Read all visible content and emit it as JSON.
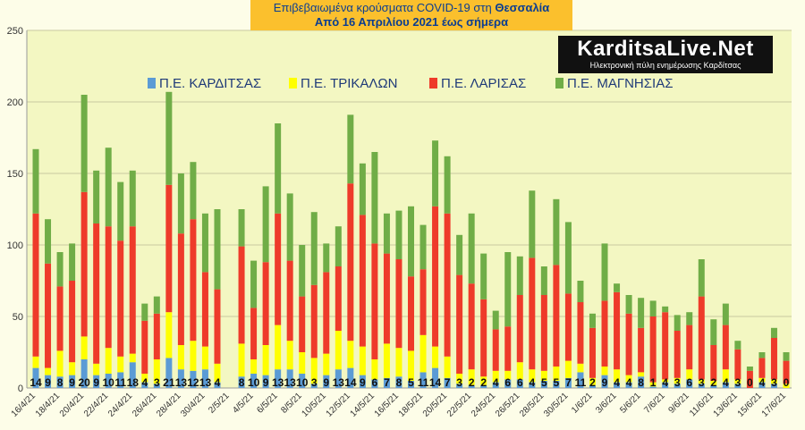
{
  "header": {
    "title_line1": "Επιβεβαιωμένα κρούσματα COVID-19 στη",
    "title_region": "Θεσσαλία",
    "title_line2": "Από 16 Απριλίου 2021 έως σήμερα"
  },
  "logo": {
    "brand": "KarditsaLive.Net",
    "tagline": "Ηλεκτρονική πύλη ενημέρωσης Καρδίτσας"
  },
  "colors": {
    "karditsa": "#5b9bd5",
    "trikala": "#ffff00",
    "larisa": "#ee3b2a",
    "magnisia": "#70ad47",
    "plot_bg": "#f3f7c2",
    "grid": "#c8c8a0"
  },
  "chart_data": {
    "type": "bar",
    "stacked": true,
    "ylim": [
      0,
      250
    ],
    "yticks": [
      0,
      50,
      100,
      150,
      200,
      250
    ],
    "grid": true,
    "legend_position": "top",
    "x_tick_labels": [
      "16/4/21",
      "18/4/21",
      "20/4/21",
      "22/4/21",
      "24/4/21",
      "26/4/21",
      "28/4/21",
      "30/4/21",
      "2/5/21",
      "4/5/21",
      "6/5/21",
      "8/5/21",
      "10/5/21",
      "12/5/21",
      "14/5/21",
      "16/5/21",
      "18/5/21",
      "20/5/21",
      "22/5/21",
      "24/5/21",
      "26/5/21",
      "28/5/21",
      "30/5/21",
      "1/6/21",
      "3/6/21",
      "5/6/21",
      "7/6/21",
      "9/6/21",
      "11/6/21",
      "13/6/21",
      "15/6/21",
      "17/6/21"
    ],
    "categories": [
      "16/4/21",
      "17/4/21",
      "18/4/21",
      "19/4/21",
      "20/4/21",
      "21/4/21",
      "22/4/21",
      "23/4/21",
      "24/4/21",
      "25/4/21",
      "26/4/21",
      "27/4/21",
      "28/4/21",
      "29/4/21",
      "30/4/21",
      "1/5/21",
      "2/5/21",
      "3/5/21",
      "4/5/21",
      "5/5/21",
      "6/5/21",
      "7/5/21",
      "8/5/21",
      "9/5/21",
      "10/5/21",
      "11/5/21",
      "12/5/21",
      "13/5/21",
      "14/5/21",
      "15/5/21",
      "16/5/21",
      "17/5/21",
      "18/5/21",
      "19/5/21",
      "20/5/21",
      "21/5/21",
      "22/5/21",
      "23/5/21",
      "24/5/21",
      "25/5/21",
      "26/5/21",
      "27/5/21",
      "28/5/21",
      "29/5/21",
      "30/5/21",
      "31/5/21",
      "1/6/21",
      "2/6/21",
      "3/6/21",
      "4/6/21",
      "5/6/21",
      "6/6/21",
      "7/6/21",
      "8/6/21",
      "9/6/21",
      "10/6/21",
      "11/6/21",
      "12/6/21",
      "13/6/21",
      "14/6/21",
      "15/6/21",
      "16/6/21",
      "17/6/21"
    ],
    "present": [
      0,
      1,
      2,
      3,
      4,
      5,
      6,
      7,
      8,
      9,
      10,
      11,
      12,
      13,
      14,
      15,
      17,
      18,
      19,
      20,
      21,
      22,
      23,
      24,
      25,
      26,
      27,
      28,
      29,
      30,
      31,
      32,
      33,
      34,
      35,
      36,
      37,
      38,
      39,
      40,
      41,
      42,
      43,
      44,
      45,
      46,
      47,
      48,
      49,
      50,
      51,
      52,
      53,
      54,
      55,
      56,
      57,
      58,
      59,
      60,
      61,
      62
    ],
    "series": [
      {
        "name": "Π.Ε. ΚΑΡΔΙΤΣΑΣ",
        "key": "karditsa",
        "values": [
          14,
          9,
          8,
          9,
          20,
          9,
          10,
          11,
          18,
          4,
          3,
          21,
          13,
          12,
          13,
          4,
          8,
          10,
          9,
          13,
          13,
          10,
          3,
          9,
          13,
          14,
          9,
          6,
          7,
          8,
          5,
          11,
          14,
          7,
          3,
          2,
          2,
          4,
          6,
          6,
          4,
          5,
          5,
          7,
          11,
          2,
          9,
          4,
          4,
          8,
          1,
          4,
          3,
          6,
          3,
          2,
          4,
          3,
          0,
          4,
          3,
          0,
          1
        ]
      },
      {
        "name": "Π.Ε. ΤΡΙΚΑΛΩΝ",
        "key": "trikala",
        "values": [
          8,
          5,
          18,
          9,
          16,
          8,
          18,
          11,
          6,
          6,
          17,
          32,
          17,
          21,
          16,
          13,
          23,
          10,
          21,
          31,
          20,
          15,
          18,
          15,
          27,
          19,
          20,
          14,
          24,
          20,
          21,
          26,
          15,
          15,
          7,
          11,
          6,
          8,
          6,
          12,
          9,
          7,
          10,
          12,
          6,
          5,
          6,
          9,
          5,
          3,
          3,
          2,
          4,
          7,
          3,
          3,
          9,
          3,
          0,
          3,
          3,
          3,
          3
        ]
      },
      {
        "name": "Π.Ε. ΛΑΡΙΣΑΣ",
        "key": "larisa",
        "values": [
          100,
          73,
          45,
          57,
          101,
          98,
          85,
          81,
          89,
          37,
          32,
          89,
          78,
          85,
          52,
          52,
          68,
          36,
          58,
          78,
          56,
          39,
          51,
          57,
          45,
          110,
          92,
          81,
          63,
          62,
          52,
          46,
          98,
          100,
          69,
          60,
          54,
          29,
          31,
          47,
          78,
          53,
          71,
          47,
          43,
          35,
          46,
          54,
          43,
          31,
          46,
          47,
          33,
          31,
          58,
          25,
          31,
          21,
          12,
          14,
          29,
          16,
          16
        ]
      },
      {
        "name": "Π.Ε. ΜΑΓΝΗΣΙΑΣ",
        "key": "magnisia",
        "values": [
          45,
          31,
          24,
          26,
          68,
          37,
          55,
          41,
          39,
          12,
          12,
          65,
          42,
          40,
          41,
          56,
          26,
          33,
          53,
          63,
          47,
          36,
          51,
          20,
          28,
          48,
          36,
          64,
          28,
          34,
          49,
          31,
          46,
          40,
          28,
          49,
          32,
          13,
          52,
          27,
          47,
          20,
          46,
          50,
          15,
          10,
          40,
          6,
          13,
          21,
          11,
          4,
          11,
          9,
          26,
          18,
          15,
          6,
          3,
          4,
          7,
          6,
          4
        ]
      }
    ],
    "data_labels": [
      14,
      9,
      8,
      9,
      20,
      9,
      10,
      11,
      18,
      4,
      3,
      21,
      13,
      12,
      13,
      4,
      8,
      10,
      9,
      13,
      13,
      10,
      3,
      9,
      13,
      14,
      9,
      6,
      7,
      8,
      5,
      11,
      14,
      7,
      3,
      2,
      2,
      4,
      6,
      6,
      4,
      5,
      5,
      7,
      11,
      2,
      9,
      4,
      4,
      8,
      1,
      4,
      3,
      6,
      3,
      2,
      4,
      3,
      0,
      4,
      3,
      0,
      1
    ]
  }
}
